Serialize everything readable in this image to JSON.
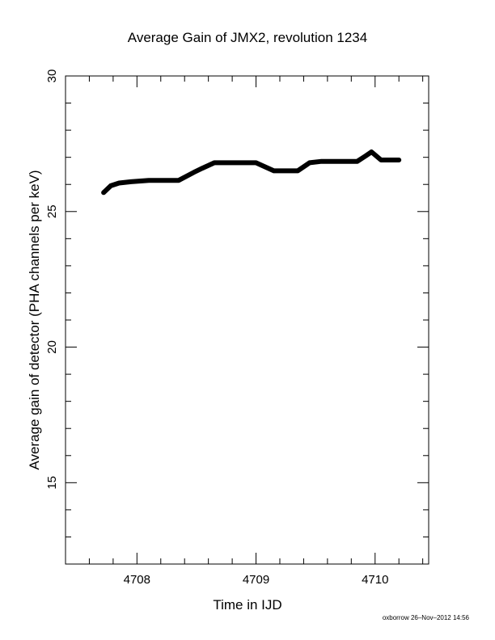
{
  "chart_data": {
    "type": "line",
    "title": "Average Gain of JMX2, revolution 1234",
    "xlabel": "Time in IJD",
    "ylabel": "Average gain of detector (PHA channels per keV)",
    "xlim": [
      4707.4,
      4710.45
    ],
    "ylim": [
      12,
      30
    ],
    "xticks": [
      4708,
      4709,
      4710
    ],
    "xtick_labels": [
      "4708",
      "4709",
      "4710"
    ],
    "yticks": [
      15,
      20,
      25,
      30
    ],
    "ytick_labels": [
      "15",
      "20",
      "25",
      "30"
    ],
    "grid": false,
    "series": [
      {
        "line_color": "#000000",
        "x": [
          4707.72,
          4707.78,
          4707.85,
          4707.95,
          4708.1,
          4708.2,
          4708.35,
          4708.48,
          4708.55,
          4708.65,
          4708.75,
          4708.9,
          4709.0,
          4709.05,
          4709.15,
          4709.25,
          4709.35,
          4709.45,
          4709.55,
          4709.7,
          4709.85,
          4709.92,
          4709.97,
          4710.05,
          4710.2
        ],
        "y": [
          25.7,
          25.95,
          26.05,
          26.1,
          26.15,
          26.15,
          26.15,
          26.45,
          26.6,
          26.8,
          26.8,
          26.8,
          26.8,
          26.7,
          26.5,
          26.5,
          26.5,
          26.8,
          26.85,
          26.85,
          26.85,
          27.05,
          27.2,
          26.9,
          26.9
        ]
      }
    ]
  },
  "footer": "oxborrow 26–Nov–2012 14:56"
}
